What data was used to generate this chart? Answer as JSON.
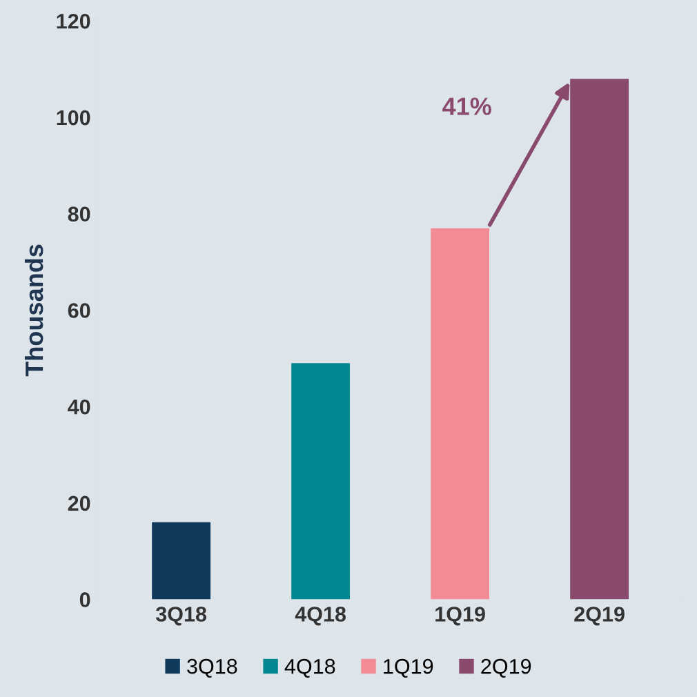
{
  "chart_data": {
    "type": "bar",
    "ylabel": "Thousands",
    "categories": [
      "3Q18",
      "4Q18",
      "1Q19",
      "2Q19"
    ],
    "series": [
      {
        "name": "3Q18",
        "color": "#0f3a5c",
        "values": [
          16,
          null,
          null,
          null
        ]
      },
      {
        "name": "4Q18",
        "color": "#00878f",
        "values": [
          null,
          49,
          null,
          null
        ]
      },
      {
        "name": "1Q19",
        "color": "#f28b95",
        "values": [
          null,
          null,
          77,
          null
        ]
      },
      {
        "name": "2Q19",
        "color": "#8a4a6e",
        "values": [
          null,
          null,
          null,
          108
        ]
      }
    ],
    "ylim": [
      0,
      120
    ],
    "yticks": [
      0,
      20,
      40,
      60,
      80,
      100,
      120
    ],
    "annotations": [
      "41%"
    ],
    "legend": "bottom",
    "grid": false
  }
}
